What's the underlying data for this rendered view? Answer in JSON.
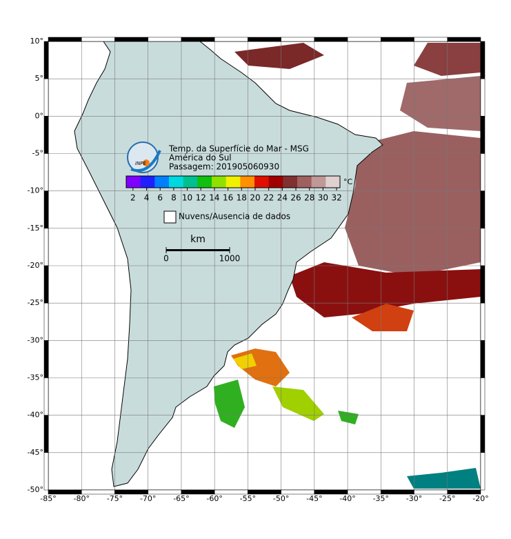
{
  "map": {
    "title": "Temp. da Superfície do Mar - MSG",
    "subtitle": "América do Sul",
    "pass": "Passagem: 201905060930",
    "logo": "INPE",
    "colorbar": {
      "unit": "°C",
      "clim": [
        1,
        32.5
      ],
      "ticks": [
        2,
        4,
        6,
        8,
        10,
        12,
        14,
        16,
        18,
        20,
        22,
        24,
        26,
        28,
        30,
        32
      ],
      "colors": [
        "#7f00ff",
        "#2020ff",
        "#0080ff",
        "#00d8e0",
        "#00c090",
        "#10c010",
        "#90e000",
        "#f0f000",
        "#ff9000",
        "#e01000",
        "#a00000",
        "#803030",
        "#a06060",
        "#c09898",
        "#e0d0d0"
      ]
    },
    "legend": "Nuvens/Ausencia de dados",
    "scale": {
      "unit": "km",
      "ticks": [
        0,
        1000
      ]
    },
    "xlim": [
      -85,
      -20
    ],
    "ylim": [
      -50,
      10
    ],
    "xticks": [
      {
        "value": -85,
        "label": "-85°"
      },
      {
        "value": -80,
        "label": "-80°"
      },
      {
        "value": -75,
        "label": "-75°"
      },
      {
        "value": -70,
        "label": "-70°"
      },
      {
        "value": -65,
        "label": "-65°"
      },
      {
        "value": -60,
        "label": "-60°"
      },
      {
        "value": -55,
        "label": "-55°"
      },
      {
        "value": -50,
        "label": "-50°"
      },
      {
        "value": -45,
        "label": "-45°"
      },
      {
        "value": -40,
        "label": "-40°"
      },
      {
        "value": -35,
        "label": "-35°"
      },
      {
        "value": -30,
        "label": "-30°"
      },
      {
        "value": -25,
        "label": "-25°"
      },
      {
        "value": -20,
        "label": "-20°"
      }
    ],
    "yticks": [
      {
        "value": 10,
        "label": "10°"
      },
      {
        "value": 5,
        "label": "5°"
      },
      {
        "value": 0,
        "label": "0°"
      },
      {
        "value": -5,
        "label": "-5°"
      },
      {
        "value": -10,
        "label": "-10°"
      },
      {
        "value": -15,
        "label": "-15°"
      },
      {
        "value": -20,
        "label": "-20°"
      },
      {
        "value": -25,
        "label": "-25°"
      },
      {
        "value": -30,
        "label": "-30°"
      },
      {
        "value": -35,
        "label": "-35°"
      },
      {
        "value": -40,
        "label": "-40°"
      },
      {
        "value": -45,
        "label": "-45°"
      },
      {
        "value": -50,
        "label": "-50°"
      }
    ],
    "grid": true
  }
}
